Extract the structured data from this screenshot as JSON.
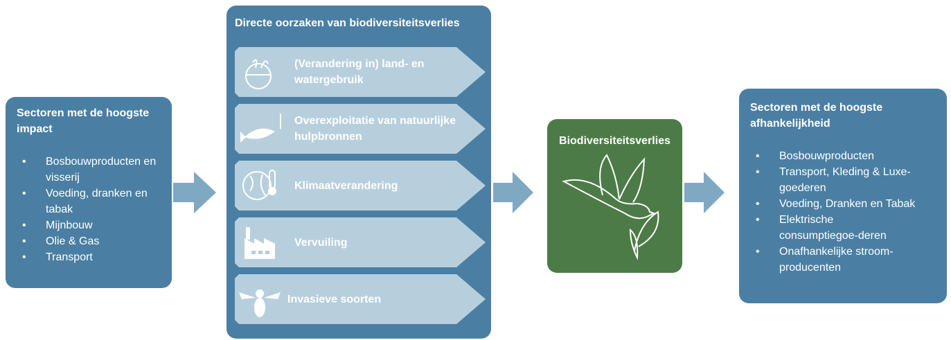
{
  "left_box": {
    "title": "Sectoren met de hoogste impact",
    "items": [
      "Bosbouwproducten en visserij",
      "Voeding, dranken en tabak",
      "Mijnbouw",
      "Olie & Gas",
      "Transport"
    ]
  },
  "causes": {
    "title": "Directe oorzaken van biodiversiteitsverlies",
    "items": [
      "(Verandering in) land- en watergebruik",
      "Overexploitatie van natuurlijke hulpbronnen",
      "Klimaatverandering",
      "Vervuiling",
      "Invasieve soorten"
    ]
  },
  "center": {
    "title": "Biodiversiteitsverlies"
  },
  "right_box": {
    "title": "Sectoren met de hoogste afhankelijkheid",
    "items": [
      "Bosbouwproducten",
      "Transport, Kleding & Luxe-goederen",
      "Voeding, Dranken en Tabak",
      "Elektrische consumptiegoe-deren",
      "Onafhankelijke stroom-producenten"
    ]
  }
}
